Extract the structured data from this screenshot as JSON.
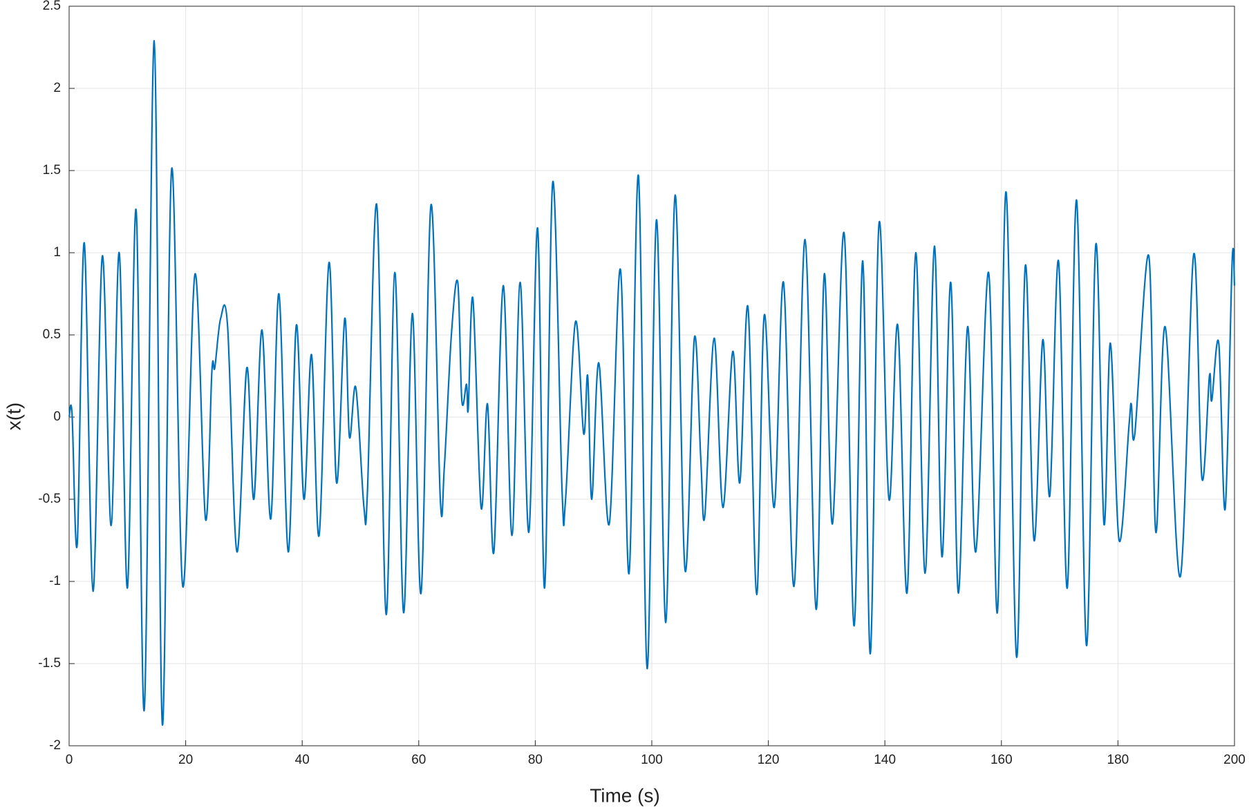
{
  "chart_data": {
    "type": "line",
    "xlabel": "Time (s)",
    "ylabel": "x(t)",
    "color": "#0072bd",
    "grid": true,
    "xlim": [
      0,
      200
    ],
    "xticks": [
      0,
      20,
      40,
      60,
      80,
      100,
      120,
      140,
      160,
      180,
      200
    ],
    "ylim": [
      -2,
      2.5
    ],
    "yticks": [
      -2,
      -1.5,
      -1,
      -0.5,
      0,
      0.5,
      1,
      1.5,
      2,
      2.5
    ],
    "x": [
      0,
      0.5,
      1.4,
      2.6,
      4.1,
      5.7,
      7.2,
      8.6,
      10.0,
      11.5,
      12.9,
      14.6,
      16.0,
      17.6,
      19.5,
      21.6,
      23.4,
      24.5,
      25.0,
      26.0,
      27.2,
      28.8,
      30.5,
      31.7,
      33.1,
      34.6,
      36.0,
      37.6,
      39.0,
      40.3,
      41.6,
      42.9,
      44.6,
      45.9,
      47.3,
      48.1,
      49.2,
      50.6,
      51.2,
      52.8,
      54.4,
      55.9,
      57.4,
      58.9,
      60.4,
      62.1,
      63.7,
      64.4,
      65.6,
      66.7,
      67.4,
      68.2,
      68.5,
      69.3,
      70.7,
      71.8,
      72.9,
      74.5,
      76.0,
      77.4,
      78.9,
      80.4,
      81.6,
      83.0,
      84.6,
      85.2,
      86.9,
      88.3,
      89.0,
      89.7,
      90.9,
      92.7,
      94.6,
      96.1,
      97.7,
      99.2,
      100.8,
      102.4,
      104.0,
      105.7,
      107.3,
      108.4,
      109.1,
      110.7,
      112.2,
      113.9,
      115.1,
      116.5,
      118.0,
      119.3,
      121.0,
      122.6,
      124.4,
      126.3,
      128.2,
      129.6,
      131.0,
      133.0,
      134.7,
      136.2,
      137.5,
      139.0,
      140.7,
      142.2,
      143.8,
      145.3,
      146.9,
      148.5,
      149.8,
      151.3,
      152.6,
      154.2,
      155.6,
      157.8,
      159.3,
      160.8,
      162.6,
      164.1,
      165.6,
      167.1,
      168.3,
      169.8,
      171.3,
      172.9,
      174.6,
      176.2,
      177.6,
      178.7,
      180.2,
      181.9,
      182.3,
      182.9,
      185.3,
      186.5,
      188.1,
      190.7,
      193.0,
      194.4,
      195.7,
      196.1,
      197.3,
      198.4,
      199.6,
      200
    ],
    "values": [
      0,
      0.02,
      -0.77,
      1.06,
      -1.06,
      0.98,
      -0.66,
      1.0,
      -1.04,
      1.26,
      -1.78,
      2.29,
      -1.87,
      1.51,
      -1.03,
      0.87,
      -0.62,
      0.28,
      0.3,
      0.6,
      0.55,
      -0.82,
      0.3,
      -0.5,
      0.53,
      -0.62,
      0.75,
      -0.82,
      0.56,
      -0.5,
      0.38,
      -0.72,
      0.94,
      -0.4,
      0.6,
      -0.12,
      0.18,
      -0.55,
      -0.45,
      1.29,
      -1.2,
      0.88,
      -1.19,
      0.63,
      -1.07,
      1.29,
      -0.5,
      -0.3,
      0.5,
      0.82,
      0.1,
      0.2,
      0.05,
      0.72,
      -0.55,
      0.08,
      -0.82,
      0.8,
      -0.72,
      0.82,
      -0.7,
      1.15,
      -1.04,
      1.43,
      -0.45,
      -0.5,
      0.58,
      -0.1,
      0.25,
      -0.5,
      0.33,
      -0.65,
      0.9,
      -0.95,
      1.47,
      -1.53,
      1.2,
      -1.25,
      1.35,
      -0.93,
      0.48,
      -0.25,
      -0.6,
      0.48,
      -0.55,
      0.4,
      -0.4,
      0.67,
      -1.08,
      0.62,
      -0.55,
      0.82,
      -1.03,
      1.08,
      -1.17,
      0.87,
      -0.65,
      1.12,
      -1.27,
      0.95,
      -1.44,
      1.18,
      -0.5,
      0.56,
      -1.07,
      1.0,
      -0.95,
      1.04,
      -0.85,
      0.82,
      -1.07,
      0.55,
      -0.82,
      0.88,
      -1.19,
      1.37,
      -1.46,
      0.92,
      -0.75,
      0.47,
      -0.48,
      0.95,
      -1.04,
      1.32,
      -1.39,
      1.05,
      -0.65,
      0.45,
      -0.75,
      -0.05,
      0.08,
      -0.1,
      0.98,
      -0.7,
      0.55,
      -0.97,
      0.99,
      -0.37,
      0.25,
      0.1,
      0.45,
      -0.56,
      0.95,
      0.8
    ]
  }
}
